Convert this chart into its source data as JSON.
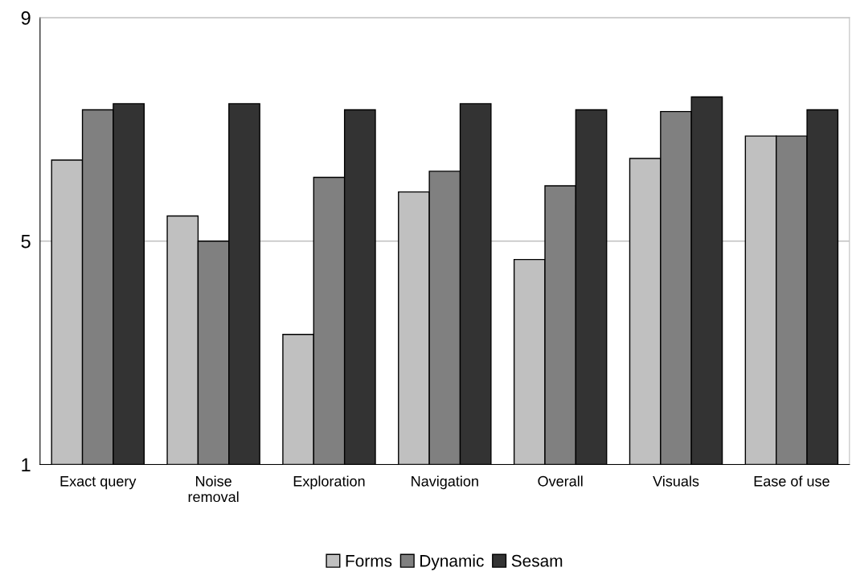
{
  "chart_data": {
    "type": "bar",
    "categories": [
      "Exact query",
      "Noise\nremoval",
      "Exploration",
      "Navigation",
      "Overall",
      "Visuals",
      "Ease of use"
    ],
    "series": [
      {
        "name": "Forms",
        "color": "#c0c0c0",
        "values": [
          6.45,
          5.45,
          3.33,
          5.88,
          4.67,
          6.48,
          6.88
        ]
      },
      {
        "name": "Dynamic",
        "color": "#808080",
        "values": [
          7.35,
          5.0,
          6.14,
          6.25,
          5.99,
          7.32,
          6.88
        ]
      },
      {
        "name": "Sesam",
        "color": "#333333",
        "values": [
          7.46,
          7.46,
          7.35,
          7.46,
          7.35,
          7.58,
          7.35
        ]
      }
    ],
    "ylim": [
      1,
      9
    ],
    "yticks": [
      1,
      5,
      9
    ],
    "grid": "y",
    "legend": "bottom"
  }
}
